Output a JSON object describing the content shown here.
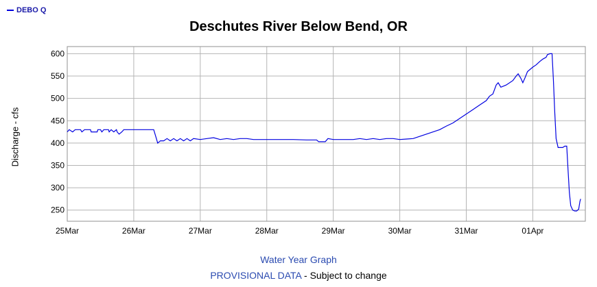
{
  "legend": {
    "label": "DEBO Q",
    "color": "#0000e0"
  },
  "chart_data": {
    "type": "line",
    "title": "Deschutes River Below Bend, OR",
    "xlabel": "",
    "ylabel": "Discharge - cfs",
    "x_ticks": [
      "25Mar",
      "26Mar",
      "27Mar",
      "28Mar",
      "29Mar",
      "30Mar",
      "31Mar",
      "01Apr"
    ],
    "y_ticks": [
      250,
      300,
      350,
      400,
      450,
      500,
      550,
      600
    ],
    "xlim": [
      0,
      7.79
    ],
    "ylim": [
      225,
      616
    ],
    "x_unit": "days since 25Mar 00:00",
    "grid": true,
    "series": [
      {
        "name": "DEBO Q",
        "color": "#0000e0",
        "points": [
          [
            0.0,
            425
          ],
          [
            0.03,
            430
          ],
          [
            0.08,
            425
          ],
          [
            0.12,
            430
          ],
          [
            0.2,
            430
          ],
          [
            0.22,
            425
          ],
          [
            0.26,
            430
          ],
          [
            0.35,
            430
          ],
          [
            0.36,
            425
          ],
          [
            0.45,
            425
          ],
          [
            0.46,
            430
          ],
          [
            0.5,
            430
          ],
          [
            0.52,
            425
          ],
          [
            0.55,
            430
          ],
          [
            0.62,
            430
          ],
          [
            0.63,
            425
          ],
          [
            0.66,
            430
          ],
          [
            0.7,
            425
          ],
          [
            0.74,
            430
          ],
          [
            0.75,
            425
          ],
          [
            0.78,
            420
          ],
          [
            0.82,
            425
          ],
          [
            0.85,
            430
          ],
          [
            1.0,
            430
          ],
          [
            1.3,
            430
          ],
          [
            1.34,
            410
          ],
          [
            1.36,
            400
          ],
          [
            1.4,
            405
          ],
          [
            1.45,
            405
          ],
          [
            1.5,
            410
          ],
          [
            1.55,
            405
          ],
          [
            1.6,
            410
          ],
          [
            1.65,
            405
          ],
          [
            1.7,
            410
          ],
          [
            1.75,
            405
          ],
          [
            1.8,
            410
          ],
          [
            1.85,
            405
          ],
          [
            1.9,
            410
          ],
          [
            2.0,
            408
          ],
          [
            2.1,
            410
          ],
          [
            2.2,
            412
          ],
          [
            2.3,
            408
          ],
          [
            2.4,
            410
          ],
          [
            2.5,
            408
          ],
          [
            2.6,
            410
          ],
          [
            2.7,
            410
          ],
          [
            2.8,
            408
          ],
          [
            3.0,
            408
          ],
          [
            3.2,
            408
          ],
          [
            3.4,
            408
          ],
          [
            3.6,
            407
          ],
          [
            3.75,
            407
          ],
          [
            3.78,
            403
          ],
          [
            3.88,
            403
          ],
          [
            3.92,
            410
          ],
          [
            4.0,
            408
          ],
          [
            4.2,
            408
          ],
          [
            4.3,
            408
          ],
          [
            4.4,
            410
          ],
          [
            4.5,
            408
          ],
          [
            4.6,
            410
          ],
          [
            4.7,
            408
          ],
          [
            4.8,
            410
          ],
          [
            4.9,
            410
          ],
          [
            5.0,
            408
          ],
          [
            5.1,
            409
          ],
          [
            5.2,
            410
          ],
          [
            5.3,
            415
          ],
          [
            5.4,
            420
          ],
          [
            5.5,
            425
          ],
          [
            5.6,
            430
          ],
          [
            5.7,
            438
          ],
          [
            5.8,
            445
          ],
          [
            5.9,
            455
          ],
          [
            6.0,
            465
          ],
          [
            6.1,
            475
          ],
          [
            6.2,
            485
          ],
          [
            6.3,
            495
          ],
          [
            6.35,
            505
          ],
          [
            6.4,
            510
          ],
          [
            6.45,
            530
          ],
          [
            6.48,
            535
          ],
          [
            6.52,
            525
          ],
          [
            6.6,
            530
          ],
          [
            6.7,
            540
          ],
          [
            6.75,
            550
          ],
          [
            6.78,
            555
          ],
          [
            6.82,
            545
          ],
          [
            6.85,
            535
          ],
          [
            6.88,
            545
          ],
          [
            6.92,
            560
          ],
          [
            7.0,
            570
          ],
          [
            7.05,
            575
          ],
          [
            7.1,
            582
          ],
          [
            7.15,
            588
          ],
          [
            7.2,
            592
          ],
          [
            7.22,
            598
          ],
          [
            7.26,
            600
          ],
          [
            7.29,
            600
          ],
          [
            7.31,
            540
          ],
          [
            7.33,
            470
          ],
          [
            7.35,
            410
          ],
          [
            7.38,
            390
          ],
          [
            7.45,
            390
          ],
          [
            7.48,
            393
          ],
          [
            7.51,
            393
          ],
          [
            7.53,
            340
          ],
          [
            7.55,
            290
          ],
          [
            7.57,
            260
          ],
          [
            7.6,
            250
          ],
          [
            7.63,
            248
          ],
          [
            7.66,
            248
          ],
          [
            7.69,
            252
          ],
          [
            7.71,
            270
          ],
          [
            7.72,
            275
          ]
        ]
      }
    ]
  },
  "footer": {
    "water_year_link": "Water Year Graph",
    "provisional_link": "PROVISIONAL DATA",
    "provisional_suffix": " - Subject to change"
  }
}
